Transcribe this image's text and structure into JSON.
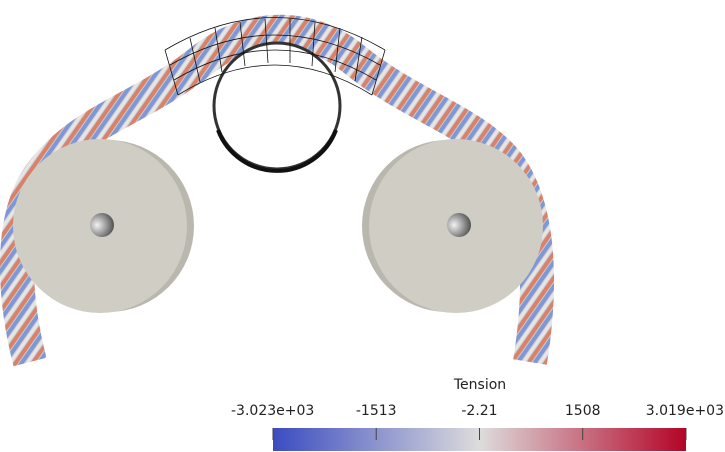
{
  "colorbar": {
    "title": "Tension",
    "range": [
      -3023,
      3019
    ],
    "ticks": [
      {
        "value": -3023,
        "label": "-3.023e+03"
      },
      -1513,
      -2.21,
      1508,
      {
        "value": 3019,
        "label": "3.019e+03"
      }
    ],
    "colors": [
      "#3b4cc0",
      "#dddcdc",
      "#b40426"
    ]
  }
}
